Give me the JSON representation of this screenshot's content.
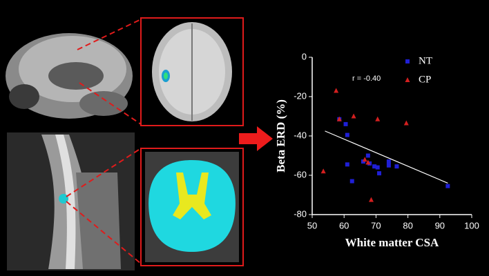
{
  "chart_data": {
    "type": "scatter",
    "xlabel": "White matter CSA",
    "ylabel": "Beta ERD (%)",
    "annotation": "r = -0.40",
    "xlim": [
      50,
      100
    ],
    "xticks": [
      50,
      60,
      70,
      80,
      90,
      100
    ],
    "ylim": [
      -80,
      0
    ],
    "yticks": [
      -80,
      -60,
      -40,
      -20,
      0
    ],
    "legend": "top-right",
    "series": [
      {
        "name": "NT",
        "color": "#1f1fd6",
        "marker": "square",
        "x": [
          58.5,
          60.5,
          61,
          61,
          62.5,
          66,
          67.5,
          68,
          69.5,
          70.5,
          71,
          74,
          74,
          76.5,
          92.5
        ],
        "values": [
          -31.5,
          -34,
          -39.5,
          -54.5,
          -63,
          -53,
          -50,
          -54,
          -55.5,
          -56,
          -59,
          -53,
          -55,
          -55.5,
          -65.5
        ]
      },
      {
        "name": "CP",
        "color": "#d41f1f",
        "marker": "triangle",
        "x": [
          53.5,
          57.5,
          58.5,
          63,
          66.5,
          67.5,
          68.5,
          70.5,
          79.5
        ],
        "values": [
          -58,
          -17,
          -31.5,
          -30,
          -52,
          -53.5,
          -72.5,
          -31.5,
          -33.5
        ]
      }
    ],
    "fit_line": {
      "color": "#ffffff",
      "x": [
        54,
        92.5
      ],
      "values": [
        -37.5,
        -64
      ]
    }
  }
}
